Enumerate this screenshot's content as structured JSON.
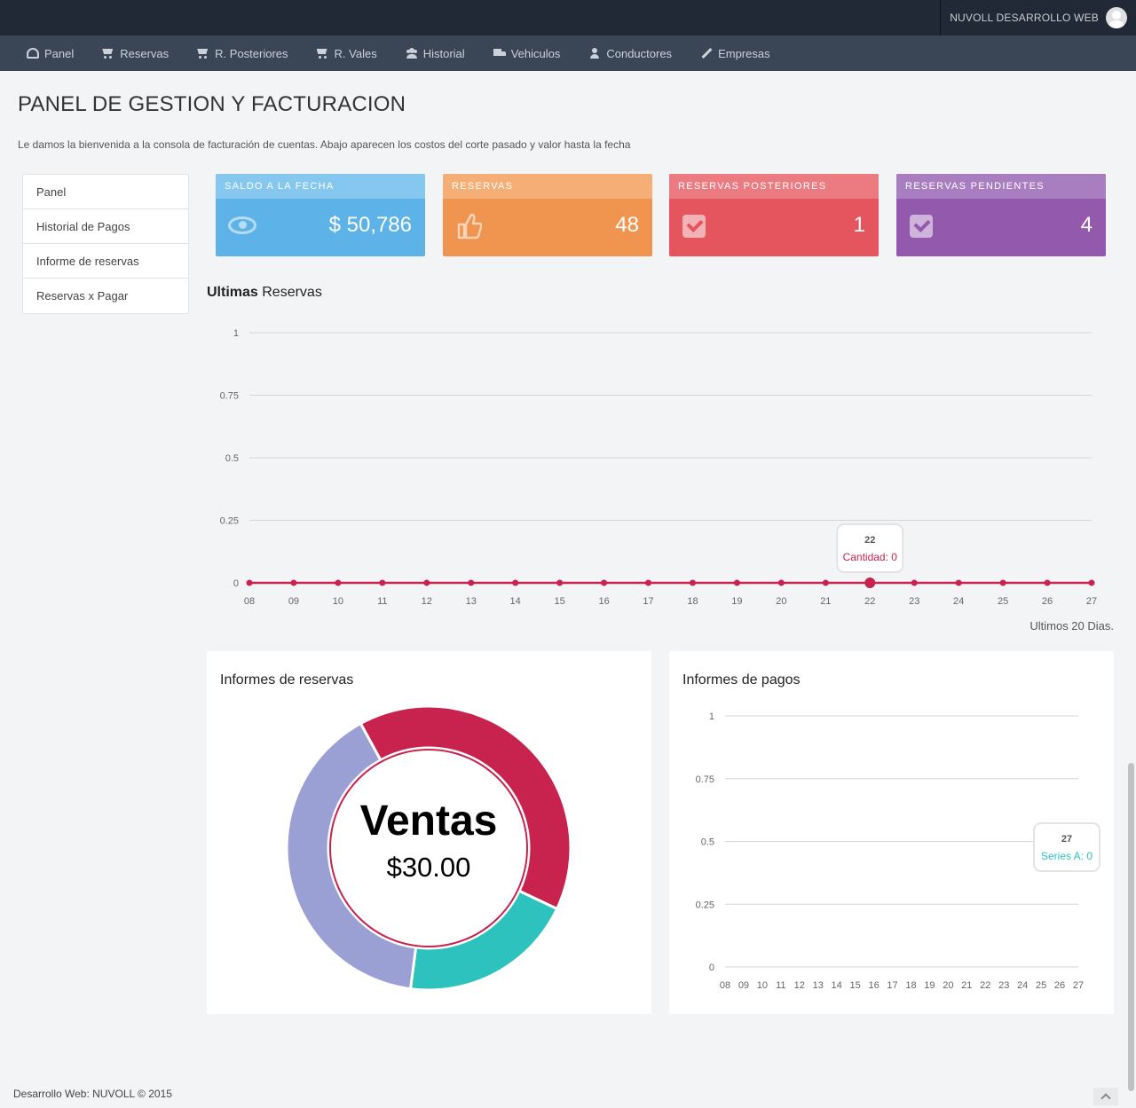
{
  "topbar": {
    "user_label": "NUVOLL DESARROLLO WEB"
  },
  "nav": {
    "items": [
      {
        "label": "Panel",
        "icon": "dashboard-icon"
      },
      {
        "label": "Reservas",
        "icon": "cart-icon"
      },
      {
        "label": "R. Posteriores",
        "icon": "cart-icon"
      },
      {
        "label": "R. Vales",
        "icon": "cart-icon"
      },
      {
        "label": "Historial",
        "icon": "users-icon"
      },
      {
        "label": "Vehiculos",
        "icon": "truck-icon"
      },
      {
        "label": "Conductores",
        "icon": "user-icon"
      },
      {
        "label": "Empresas",
        "icon": "pencil-icon"
      }
    ]
  },
  "header": {
    "title": "PANEL DE GESTION Y FACTURACION",
    "subtitle": "Le damos la bienvenida a la consola de facturación de cuentas. Abajo aparecen los costos del corte pasado y valor hasta la fecha"
  },
  "side_menu": {
    "items": [
      "Panel",
      "Historial de Pagos",
      "Informe de reservas",
      "Reservas x Pagar"
    ]
  },
  "stats": {
    "saldo": {
      "label": "SALDO A LA FECHA",
      "value": "$ 50,786",
      "icon": "eye-icon",
      "color": "#5db3e7"
    },
    "reservas": {
      "label": "RESERVAS",
      "value": "48",
      "icon": "thumbs-up-icon",
      "color": "#f0954f"
    },
    "posteriores": {
      "label": "RESERVAS POSTERIORES",
      "value": "1",
      "icon": "check-square-icon",
      "color": "#e5555e"
    },
    "pendientes": {
      "label": "RESERVAS PENDIENTES",
      "value": "4",
      "icon": "check-square-icon",
      "color": "#9259ad"
    }
  },
  "ultimas": {
    "title_bold": "Ultimas",
    "title_rest": " Reservas",
    "footnote": "Ultimos 20 Dias."
  },
  "informes_reservas": {
    "title": "Informes de reservas",
    "center_title": "Ventas",
    "center_value": "$30.00"
  },
  "informes_pagos": {
    "title": "Informes de pagos"
  },
  "chart_data": [
    {
      "type": "line",
      "name": "ultimas-reservas",
      "x": [
        "08",
        "09",
        "10",
        "11",
        "12",
        "13",
        "14",
        "15",
        "16",
        "17",
        "18",
        "19",
        "20",
        "21",
        "22",
        "23",
        "24",
        "25",
        "26",
        "27"
      ],
      "series": [
        {
          "name": "Cantidad",
          "values": [
            0,
            0,
            0,
            0,
            0,
            0,
            0,
            0,
            0,
            0,
            0,
            0,
            0,
            0,
            0,
            0,
            0,
            0,
            0,
            0
          ],
          "color": "#c8234e"
        }
      ],
      "yticks": [
        "0",
        "0.25",
        "0.5",
        "0.75",
        "1"
      ],
      "ylim": [
        0,
        1
      ],
      "tooltip": {
        "x": "22",
        "text": "Cantidad: 0"
      },
      "grid": true
    },
    {
      "type": "pie",
      "name": "informes-reservas",
      "slices": [
        {
          "value": 40,
          "color": "#c8234e"
        },
        {
          "value": 20,
          "color": "#2ec2bf"
        },
        {
          "value": 40,
          "color": "#9aa0d4"
        }
      ]
    },
    {
      "type": "line",
      "name": "informes-pagos",
      "x": [
        "08",
        "09",
        "10",
        "11",
        "12",
        "13",
        "14",
        "15",
        "16",
        "17",
        "18",
        "19",
        "20",
        "21",
        "22",
        "23",
        "24",
        "25",
        "26",
        "27"
      ],
      "series": [
        {
          "name": "Series A",
          "values": [
            0,
            0,
            0,
            0,
            0,
            0,
            0,
            0,
            0,
            0,
            0,
            0,
            0,
            0,
            0,
            0,
            0,
            0,
            0,
            0
          ],
          "color": "#2ec2bf"
        }
      ],
      "yticks": [
        "0",
        "0.25",
        "0.5",
        "0.75",
        "1"
      ],
      "ylim": [
        0,
        1
      ],
      "tooltip": {
        "x": "27",
        "text": "Series A: 0"
      },
      "grid": true
    }
  ],
  "footer": {
    "text": "Desarrollo Web: NUVOLL © 2015"
  }
}
